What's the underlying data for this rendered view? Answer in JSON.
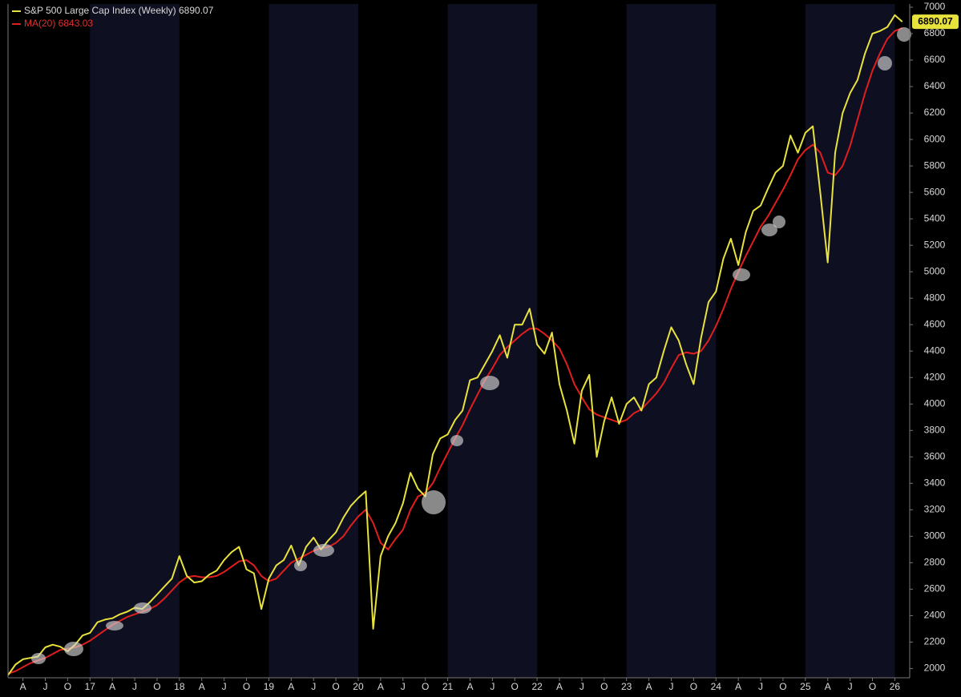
{
  "chart_data": {
    "type": "line",
    "x": [
      "2016-02",
      "2016-03",
      "2016-04",
      "2016-05",
      "2016-06",
      "2016-07",
      "2016-08",
      "2016-09",
      "2016-10",
      "2016-11",
      "2016-12",
      "2017-01",
      "2017-02",
      "2017-03",
      "2017-04",
      "2017-05",
      "2017-06",
      "2017-07",
      "2017-08",
      "2017-09",
      "2017-10",
      "2017-11",
      "2017-12",
      "2018-01",
      "2018-02",
      "2018-03",
      "2018-04",
      "2018-05",
      "2018-06",
      "2018-07",
      "2018-08",
      "2018-09",
      "2018-10",
      "2018-11",
      "2018-12",
      "2019-01",
      "2019-02",
      "2019-03",
      "2019-04",
      "2019-05",
      "2019-06",
      "2019-07",
      "2019-08",
      "2019-09",
      "2019-10",
      "2019-11",
      "2019-12",
      "2020-01",
      "2020-02",
      "2020-03",
      "2020-04",
      "2020-05",
      "2020-06",
      "2020-07",
      "2020-08",
      "2020-09",
      "2020-10",
      "2020-11",
      "2020-12",
      "2021-01",
      "2021-02",
      "2021-03",
      "2021-04",
      "2021-05",
      "2021-06",
      "2021-07",
      "2021-08",
      "2021-09",
      "2021-10",
      "2021-11",
      "2021-12",
      "2022-01",
      "2022-02",
      "2022-03",
      "2022-04",
      "2022-05",
      "2022-06",
      "2022-07",
      "2022-08",
      "2022-09",
      "2022-10",
      "2022-11",
      "2022-12",
      "2023-01",
      "2023-02",
      "2023-03",
      "2023-04",
      "2023-05",
      "2023-06",
      "2023-07",
      "2023-08",
      "2023-09",
      "2023-10",
      "2023-11",
      "2023-12",
      "2024-01",
      "2024-02",
      "2024-03",
      "2024-04",
      "2024-05",
      "2024-06",
      "2024-07",
      "2024-08",
      "2024-09",
      "2024-10",
      "2024-11",
      "2024-12",
      "2025-01",
      "2025-02",
      "2025-03",
      "2025-04",
      "2025-05",
      "2025-06",
      "2025-07",
      "2025-08",
      "2025-09",
      "2025-10",
      "2025-11",
      "2025-12",
      "2026-01",
      "2026-02"
    ],
    "series": [
      {
        "name": "S&P 500 Large Cap Index (Weekly) 6890.07",
        "color": "#e8e23c",
        "values": [
          1950,
          2030,
          2070,
          2080,
          2090,
          2160,
          2180,
          2165,
          2130,
          2180,
          2250,
          2270,
          2350,
          2370,
          2380,
          2410,
          2430,
          2460,
          2450,
          2500,
          2560,
          2620,
          2680,
          2850,
          2700,
          2650,
          2660,
          2710,
          2740,
          2820,
          2880,
          2920,
          2750,
          2720,
          2450,
          2680,
          2780,
          2820,
          2930,
          2780,
          2920,
          2990,
          2900,
          2970,
          3030,
          3140,
          3230,
          3290,
          3340,
          2300,
          2850,
          3000,
          3100,
          3250,
          3480,
          3360,
          3300,
          3620,
          3740,
          3770,
          3880,
          3950,
          4180,
          4200,
          4300,
          4400,
          4520,
          4350,
          4600,
          4600,
          4720,
          4450,
          4380,
          4540,
          4150,
          3950,
          3700,
          4100,
          4220,
          3600,
          3870,
          4050,
          3850,
          4000,
          4050,
          3950,
          4150,
          4200,
          4400,
          4580,
          4480,
          4300,
          4150,
          4500,
          4770,
          4850,
          5100,
          5250,
          5050,
          5300,
          5460,
          5500,
          5630,
          5750,
          5800,
          6030,
          5900,
          6050,
          6100,
          5600,
          5070,
          5900,
          6200,
          6350,
          6450,
          6650,
          6800,
          6820,
          6850,
          6940,
          6890.07
        ]
      },
      {
        "name": "MA(20) 6843.03",
        "color": "#e01e1e",
        "values": [
          1960,
          1980,
          2010,
          2040,
          2060,
          2080,
          2110,
          2140,
          2150,
          2160,
          2180,
          2210,
          2250,
          2290,
          2330,
          2360,
          2390,
          2410,
          2430,
          2450,
          2480,
          2530,
          2590,
          2650,
          2690,
          2700,
          2690,
          2690,
          2700,
          2730,
          2770,
          2810,
          2820,
          2780,
          2700,
          2660,
          2680,
          2740,
          2800,
          2830,
          2860,
          2890,
          2910,
          2920,
          2950,
          3000,
          3080,
          3150,
          3200,
          3100,
          2950,
          2900,
          2980,
          3050,
          3200,
          3300,
          3330,
          3400,
          3520,
          3630,
          3740,
          3840,
          3960,
          4070,
          4180,
          4270,
          4370,
          4430,
          4480,
          4530,
          4570,
          4570,
          4530,
          4480,
          4420,
          4300,
          4150,
          4050,
          3960,
          3920,
          3900,
          3880,
          3860,
          3880,
          3930,
          3960,
          4020,
          4080,
          4160,
          4270,
          4370,
          4390,
          4380,
          4400,
          4480,
          4590,
          4720,
          4870,
          5000,
          5120,
          5230,
          5340,
          5420,
          5520,
          5620,
          5730,
          5850,
          5920,
          5960,
          5900,
          5750,
          5730,
          5800,
          5950,
          6150,
          6350,
          6520,
          6650,
          6760,
          6820,
          6843.03
        ]
      }
    ],
    "xlim": [
      "2016-02",
      "2026-03"
    ],
    "xticks": [
      {
        "value": "2016-04",
        "label": "A"
      },
      {
        "value": "2016-07",
        "label": "J"
      },
      {
        "value": "2016-10",
        "label": "O"
      },
      {
        "value": "2017-01",
        "label": "17"
      },
      {
        "value": "2017-04",
        "label": "A"
      },
      {
        "value": "2017-07",
        "label": "J"
      },
      {
        "value": "2017-10",
        "label": "O"
      },
      {
        "value": "2018-01",
        "label": "18"
      },
      {
        "value": "2018-04",
        "label": "A"
      },
      {
        "value": "2018-07",
        "label": "J"
      },
      {
        "value": "2018-10",
        "label": "O"
      },
      {
        "value": "2019-01",
        "label": "19"
      },
      {
        "value": "2019-04",
        "label": "A"
      },
      {
        "value": "2019-07",
        "label": "J"
      },
      {
        "value": "2019-10",
        "label": "O"
      },
      {
        "value": "2020-01",
        "label": "20"
      },
      {
        "value": "2020-04",
        "label": "A"
      },
      {
        "value": "2020-07",
        "label": "J"
      },
      {
        "value": "2020-10",
        "label": "O"
      },
      {
        "value": "2021-01",
        "label": "21"
      },
      {
        "value": "2021-04",
        "label": "A"
      },
      {
        "value": "2021-07",
        "label": "J"
      },
      {
        "value": "2021-10",
        "label": "O"
      },
      {
        "value": "2022-01",
        "label": "22"
      },
      {
        "value": "2022-04",
        "label": "A"
      },
      {
        "value": "2022-07",
        "label": "J"
      },
      {
        "value": "2022-10",
        "label": "O"
      },
      {
        "value": "2023-01",
        "label": "23"
      },
      {
        "value": "2023-04",
        "label": "A"
      },
      {
        "value": "2023-07",
        "label": "J"
      },
      {
        "value": "2023-10",
        "label": "O"
      },
      {
        "value": "2024-01",
        "label": "24"
      },
      {
        "value": "2024-04",
        "label": "A"
      },
      {
        "value": "2024-07",
        "label": "J"
      },
      {
        "value": "2024-10",
        "label": "O"
      },
      {
        "value": "2025-01",
        "label": "25"
      },
      {
        "value": "2025-04",
        "label": "A"
      },
      {
        "value": "2025-07",
        "label": "J"
      },
      {
        "value": "2025-10",
        "label": "O"
      },
      {
        "value": "2026-01",
        "label": "26"
      }
    ],
    "ylim": [
      1930,
      7000
    ],
    "yticks": [
      2000,
      2200,
      2400,
      2600,
      2800,
      3000,
      3200,
      3400,
      3600,
      3800,
      4000,
      4200,
      4400,
      4600,
      4800,
      5000,
      5200,
      5400,
      5600,
      5800,
      6000,
      6200,
      6400,
      6600,
      6800,
      7000
    ],
    "grid": false
  }
}
